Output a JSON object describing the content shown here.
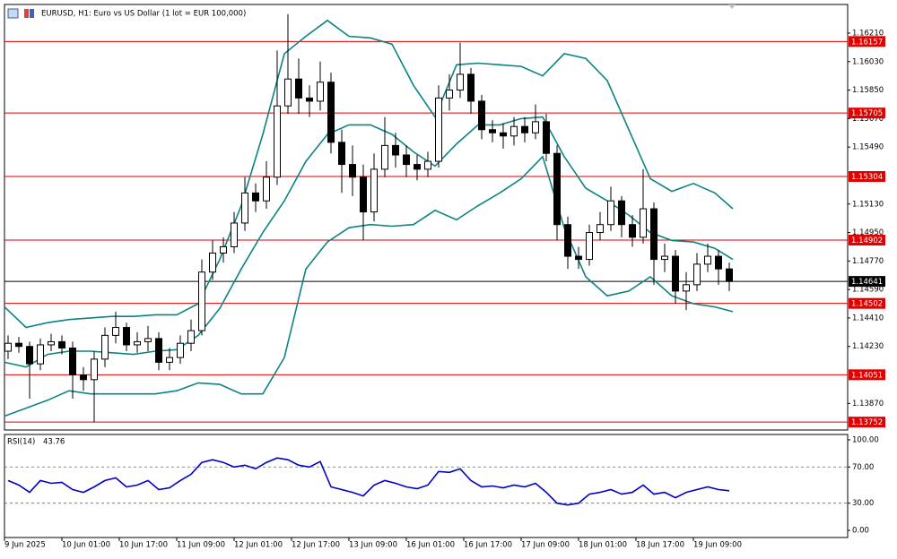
{
  "chart_data": [
    {
      "type": "candlestick",
      "title": "EURUSD, H1:  Euro vs US Dollar (1 lot = EUR 100,000)",
      "xlim": [
        0,
        235
      ],
      "ylim": [
        1.13702,
        1.16391
      ],
      "xticks": [
        {
          "value": 0,
          "label": "9 Jun 2025"
        },
        {
          "value": 16,
          "label": "10 Jun 01:00"
        },
        {
          "value": 32,
          "label": "10 Jun 17:00"
        },
        {
          "value": 48,
          "label": "11 Jun 09:00"
        },
        {
          "value": 64,
          "label": "12 Jun 01:00"
        },
        {
          "value": 80,
          "label": "12 Jun 17:00"
        },
        {
          "value": 96,
          "label": "13 Jun 09:00"
        },
        {
          "value": 112,
          "label": "16 Jun 01:00"
        },
        {
          "value": 128,
          "label": "16 Jun 17:00"
        },
        {
          "value": 144,
          "label": "17 Jun 09:00"
        },
        {
          "value": 160,
          "label": "18 Jun 01:00"
        },
        {
          "value": 176,
          "label": "18 Jun 17:00"
        },
        {
          "value": 192,
          "label": "19 Jun 09:00"
        }
      ],
      "yticks": [
        {
          "value": 1.1621,
          "label": "1.16210"
        },
        {
          "value": 1.1603,
          "label": "1.16030"
        },
        {
          "value": 1.1585,
          "label": "1.15850"
        },
        {
          "value": 1.1567,
          "label": "1.15670"
        },
        {
          "value": 1.1549,
          "label": "1.15490"
        },
        {
          "value": 1.1513,
          "label": "1.15130"
        },
        {
          "value": 1.1495,
          "label": "1.14950"
        },
        {
          "value": 1.1477,
          "label": "1.14770"
        },
        {
          "value": 1.1459,
          "label": "1.14590"
        },
        {
          "value": 1.1441,
          "label": "1.14410"
        },
        {
          "value": 1.1423,
          "label": "1.14230"
        },
        {
          "value": 1.1387,
          "label": "1.13870"
        }
      ],
      "x": [
        1,
        4,
        7,
        10,
        13,
        16,
        19,
        22,
        25,
        28,
        31,
        34,
        37,
        40,
        43,
        46,
        49,
        52,
        55,
        58,
        61,
        64,
        67,
        70,
        73,
        76,
        79,
        82,
        85,
        88,
        91,
        94,
        97,
        100,
        103,
        106,
        109,
        112,
        115,
        118,
        121,
        124,
        127,
        130,
        133,
        136,
        139,
        142,
        145,
        148,
        151,
        154,
        157,
        160,
        163,
        166,
        169,
        172,
        175,
        178,
        181,
        184,
        187,
        190,
        193,
        196,
        199,
        202
      ],
      "open": [
        1.142,
        1.1425,
        1.1423,
        1.1412,
        1.1424,
        1.1426,
        1.1422,
        1.1405,
        1.1402,
        1.1415,
        1.143,
        1.1435,
        1.1424,
        1.1426,
        1.1428,
        1.1413,
        1.1416,
        1.1425,
        1.1433,
        1.147,
        1.1482,
        1.1486,
        1.1501,
        1.152,
        1.1515,
        1.153,
        1.1575,
        1.1592,
        1.158,
        1.1578,
        1.159,
        1.1552,
        1.1538,
        1.153,
        1.1508,
        1.1535,
        1.155,
        1.1544,
        1.1538,
        1.1535,
        1.154,
        1.158,
        1.1585,
        1.1595,
        1.1578,
        1.156,
        1.1558,
        1.1556,
        1.1562,
        1.1558,
        1.1565,
        1.1545,
        1.15,
        1.148,
        1.1478,
        1.1495,
        1.15,
        1.1515,
        1.15,
        1.1492,
        1.151,
        1.1478,
        1.148,
        1.1458,
        1.1462,
        1.1475,
        1.148,
        1.1472
      ],
      "high": [
        1.143,
        1.1429,
        1.1426,
        1.1428,
        1.1431,
        1.143,
        1.1426,
        1.141,
        1.142,
        1.1435,
        1.1445,
        1.1438,
        1.1432,
        1.1436,
        1.1432,
        1.1422,
        1.143,
        1.144,
        1.1478,
        1.149,
        1.1492,
        1.1508,
        1.153,
        1.1526,
        1.154,
        1.161,
        1.1633,
        1.1605,
        1.1588,
        1.1603,
        1.1596,
        1.156,
        1.155,
        1.1538,
        1.1545,
        1.1568,
        1.1558,
        1.155,
        1.1544,
        1.1546,
        1.1588,
        1.1595,
        1.1615,
        1.1599,
        1.1582,
        1.1566,
        1.1564,
        1.1568,
        1.1568,
        1.1576,
        1.157,
        1.155,
        1.1505,
        1.1486,
        1.15,
        1.1508,
        1.1524,
        1.1518,
        1.1506,
        1.1535,
        1.1514,
        1.1488,
        1.1484,
        1.147,
        1.1482,
        1.1488,
        1.1484,
        1.1476
      ],
      "low": [
        1.1415,
        1.1419,
        1.139,
        1.1408,
        1.142,
        1.1418,
        1.139,
        1.1395,
        1.1375,
        1.141,
        1.1425,
        1.142,
        1.1419,
        1.142,
        1.1408,
        1.1408,
        1.1412,
        1.142,
        1.143,
        1.1465,
        1.1476,
        1.1482,
        1.1496,
        1.1508,
        1.151,
        1.1525,
        1.157,
        1.157,
        1.1568,
        1.1572,
        1.1545,
        1.152,
        1.1518,
        1.149,
        1.1502,
        1.153,
        1.1536,
        1.153,
        1.1528,
        1.153,
        1.1536,
        1.1572,
        1.158,
        1.157,
        1.1554,
        1.1552,
        1.1548,
        1.155,
        1.1552,
        1.1554,
        1.154,
        1.149,
        1.1472,
        1.1472,
        1.1474,
        1.149,
        1.1496,
        1.1492,
        1.1486,
        1.1488,
        1.1462,
        1.147,
        1.145,
        1.1446,
        1.1458,
        1.147,
        1.1462,
        1.1458
      ],
      "close": [
        1.1425,
        1.1423,
        1.1412,
        1.1424,
        1.1426,
        1.1422,
        1.1405,
        1.1402,
        1.1415,
        1.143,
        1.1435,
        1.1424,
        1.1426,
        1.1428,
        1.1413,
        1.1416,
        1.1425,
        1.1433,
        1.147,
        1.1482,
        1.1486,
        1.1501,
        1.152,
        1.1515,
        1.153,
        1.1575,
        1.1592,
        1.158,
        1.1578,
        1.159,
        1.1552,
        1.1538,
        1.153,
        1.1508,
        1.1535,
        1.155,
        1.1544,
        1.1538,
        1.1535,
        1.154,
        1.158,
        1.1585,
        1.1595,
        1.1578,
        1.156,
        1.1558,
        1.1556,
        1.1562,
        1.1558,
        1.1565,
        1.1545,
        1.15,
        1.148,
        1.1478,
        1.1495,
        1.15,
        1.1515,
        1.15,
        1.1492,
        1.151,
        1.1478,
        1.148,
        1.1458,
        1.1462,
        1.1475,
        1.148,
        1.1472,
        1.14641
      ],
      "series": [
        {
          "color": "#0c8383",
          "x": [
            0,
            6,
            12,
            18,
            24,
            30,
            36,
            42,
            48,
            54,
            60,
            66,
            72,
            78,
            84,
            90,
            96,
            102,
            108,
            114,
            120,
            126,
            132,
            138,
            144,
            150,
            156,
            162,
            168,
            174,
            180,
            186,
            192,
            198,
            203
          ],
          "values": [
            1.1448,
            1.1435,
            1.1438,
            1.144,
            1.1441,
            1.1442,
            1.1442,
            1.1443,
            1.1443,
            1.145,
            1.1478,
            1.1512,
            1.1557,
            1.1608,
            1.1619,
            1.1629,
            1.1619,
            1.1618,
            1.1614,
            1.1588,
            1.1568,
            1.1601,
            1.1602,
            1.1601,
            1.16,
            1.1594,
            1.1608,
            1.1605,
            1.1591,
            1.156,
            1.1529,
            1.1521,
            1.1526,
            1.152,
            1.151
          ]
        },
        {
          "color": "#0c8383",
          "x": [
            0,
            6,
            12,
            18,
            24,
            30,
            36,
            42,
            48,
            54,
            60,
            66,
            72,
            78,
            84,
            90,
            96,
            102,
            108,
            114,
            120,
            126,
            132,
            138,
            144,
            150,
            156,
            162,
            168,
            174,
            180,
            186,
            192,
            198,
            203
          ],
          "values": [
            1.1413,
            1.141,
            1.1418,
            1.142,
            1.142,
            1.1419,
            1.1418,
            1.142,
            1.1421,
            1.143,
            1.1447,
            1.1472,
            1.1495,
            1.1515,
            1.154,
            1.1557,
            1.1563,
            1.1563,
            1.1557,
            1.1546,
            1.1537,
            1.1551,
            1.1563,
            1.1563,
            1.1567,
            1.1568,
            1.1543,
            1.1523,
            1.1515,
            1.1506,
            1.1495,
            1.149,
            1.1489,
            1.1485,
            1.1478
          ]
        },
        {
          "color": "#0c8383",
          "x": [
            0,
            6,
            12,
            18,
            24,
            30,
            36,
            42,
            48,
            54,
            60,
            66,
            72,
            78,
            84,
            90,
            96,
            102,
            108,
            114,
            120,
            126,
            132,
            138,
            144,
            150,
            156,
            162,
            168,
            174,
            180,
            186,
            192,
            198,
            203
          ],
          "values": [
            1.1379,
            1.1384,
            1.1389,
            1.1395,
            1.1393,
            1.1393,
            1.1393,
            1.1393,
            1.1395,
            1.14,
            1.1399,
            1.1393,
            1.1393,
            1.1416,
            1.1472,
            1.1489,
            1.1498,
            1.15,
            1.1499,
            1.15,
            1.1509,
            1.1503,
            1.1512,
            1.152,
            1.1529,
            1.1543,
            1.1498,
            1.1467,
            1.1455,
            1.1458,
            1.1467,
            1.1455,
            1.145,
            1.1448,
            1.1445
          ]
        }
      ],
      "levels": [
        {
          "value": 1.16157,
          "color": "#e00000"
        },
        {
          "value": 1.15705,
          "color": "#e00000"
        },
        {
          "value": 1.15304,
          "color": "#e00000"
        },
        {
          "value": 1.14902,
          "color": "#e00000"
        },
        {
          "value": 1.14502,
          "color": "#e00000"
        },
        {
          "value": 1.14051,
          "color": "#e00000"
        },
        {
          "value": 1.13752,
          "color": "#e00000"
        }
      ],
      "current_price": {
        "value": 1.14641,
        "color": "#000000"
      }
    },
    {
      "type": "line",
      "title": "RSI(14)",
      "last_value": 43.76,
      "color": "#0000c8",
      "xlim": [
        0,
        235
      ],
      "ylim": [
        -7.9,
        105.9
      ],
      "yticks": [
        {
          "value": 100,
          "label": "100.00"
        },
        {
          "value": 70,
          "label": "70.00"
        },
        {
          "value": 30,
          "label": "30.00"
        },
        {
          "value": 0,
          "label": "0.00"
        }
      ],
      "levels": [
        70,
        30
      ],
      "x": [
        1,
        4,
        7,
        10,
        13,
        16,
        19,
        22,
        25,
        28,
        31,
        34,
        37,
        40,
        43,
        46,
        49,
        52,
        55,
        58,
        61,
        64,
        67,
        70,
        73,
        76,
        79,
        82,
        85,
        88,
        91,
        94,
        97,
        100,
        103,
        106,
        109,
        112,
        115,
        118,
        121,
        124,
        127,
        130,
        133,
        136,
        139,
        142,
        145,
        148,
        151,
        154,
        157,
        160,
        163,
        166,
        169,
        172,
        175,
        178,
        181,
        184,
        187,
        190,
        193,
        196,
        199,
        202
      ],
      "values": [
        55,
        50,
        42,
        55,
        52,
        53,
        45,
        42,
        48,
        55,
        58,
        48,
        50,
        55,
        45,
        47,
        55,
        62,
        75,
        78,
        75,
        70,
        72,
        68,
        75,
        80,
        78,
        72,
        70,
        76,
        48,
        45,
        42,
        38,
        50,
        55,
        52,
        48,
        46,
        50,
        65,
        64,
        68,
        55,
        48,
        49,
        47,
        50,
        48,
        52,
        42,
        30,
        28,
        30,
        40,
        42,
        45,
        40,
        42,
        50,
        40,
        42,
        36,
        42,
        45,
        48,
        45,
        43.76
      ]
    }
  ]
}
